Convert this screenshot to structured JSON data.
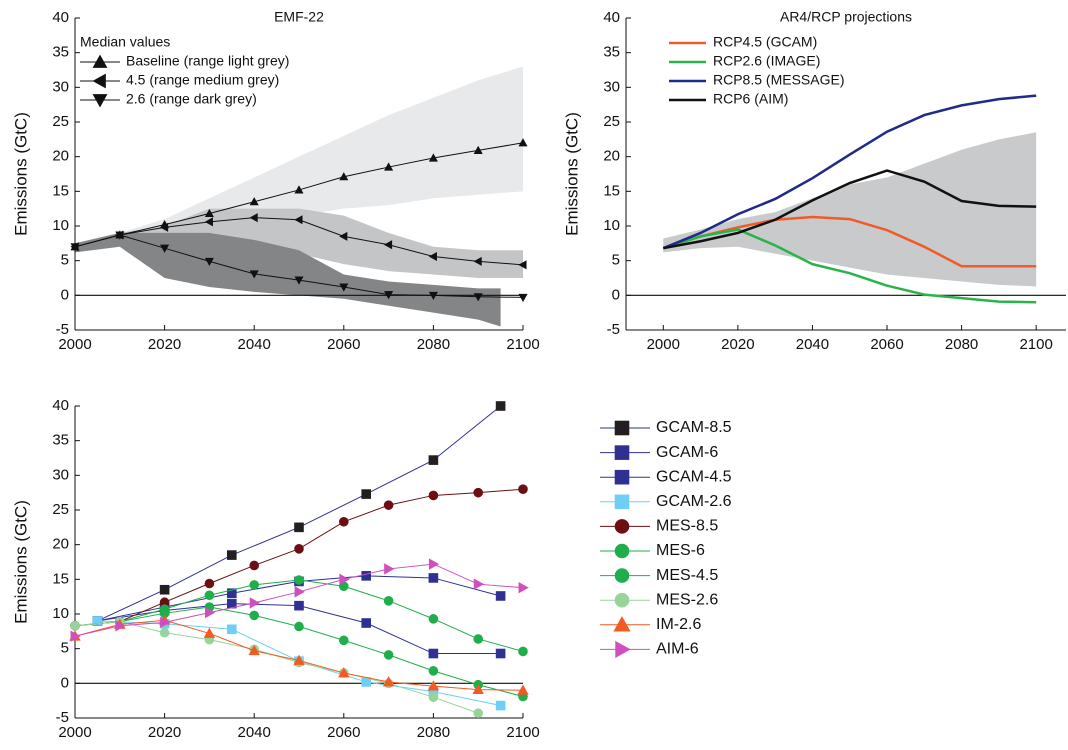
{
  "chart_data": [
    {
      "type": "line",
      "title": "EMF-22",
      "y_label": "Emissions (GtC)",
      "xlim": [
        2000,
        2100
      ],
      "xticks": [
        2000,
        2020,
        2040,
        2060,
        2080,
        2100
      ],
      "ylim": [
        -5,
        40
      ],
      "yticks": [
        -5,
        0,
        5,
        10,
        15,
        20,
        25,
        30,
        35,
        40
      ],
      "zero_line": true,
      "legend": "upper left",
      "legend_title": "Median values",
      "bands": [
        {
          "color": "#e8e9ea",
          "x": [
            2000,
            2010,
            2020,
            2030,
            2040,
            2050,
            2060,
            2070,
            2080,
            2090,
            2100
          ],
          "lower": [
            6.2,
            7.5,
            9,
            9.5,
            10.5,
            11.5,
            12.5,
            13,
            14,
            14.5,
            15
          ],
          "upper": [
            7.5,
            9,
            11,
            14,
            17,
            20,
            23,
            26,
            28.5,
            31,
            33
          ]
        },
        {
          "color": "#c4c5c7",
          "x": [
            2000,
            2010,
            2020,
            2030,
            2040,
            2050,
            2060,
            2070,
            2080,
            2090,
            2100
          ],
          "lower": [
            6.2,
            7.5,
            7.5,
            9,
            8,
            6,
            4.5,
            3.5,
            3,
            2.5,
            2.5
          ],
          "upper": [
            7.5,
            9,
            10,
            12.5,
            12.5,
            12.5,
            11.5,
            9,
            7,
            6.5,
            6.5
          ]
        },
        {
          "color": "#838587",
          "x": [
            2000,
            2010,
            2020,
            2030,
            2040,
            2050,
            2060,
            2070,
            2080,
            2090,
            2095
          ],
          "lower": [
            6.2,
            7,
            2.5,
            1.2,
            0.5,
            0,
            -0.5,
            -1.5,
            -2.5,
            -3.5,
            -4.5
          ],
          "upper": [
            7.5,
            9,
            9,
            9,
            8,
            6.5,
            3,
            2,
            1.5,
            1,
            1
          ]
        }
      ],
      "series": [
        {
          "name": "Baseline (range light grey)",
          "color": "#111111",
          "marker": "triangle-up",
          "x": [
            2000,
            2010,
            2020,
            2030,
            2040,
            2050,
            2060,
            2070,
            2080,
            2090,
            2100
          ],
          "values": [
            7,
            8.7,
            10.2,
            11.8,
            13.5,
            15.2,
            17.1,
            18.5,
            19.8,
            20.9,
            22
          ]
        },
        {
          "name": "4.5 (range medium grey)",
          "color": "#111111",
          "marker": "triangle-left",
          "x": [
            2000,
            2010,
            2020,
            2030,
            2040,
            2050,
            2060,
            2070,
            2080,
            2090,
            2100
          ],
          "values": [
            7,
            8.7,
            9.8,
            10.6,
            11.2,
            10.9,
            8.5,
            7.3,
            5.6,
            4.9,
            4.4
          ]
        },
        {
          "name": "2.6 (range dark grey)",
          "color": "#111111",
          "marker": "triangle-down",
          "x": [
            2000,
            2010,
            2020,
            2030,
            2040,
            2050,
            2060,
            2070,
            2080,
            2090,
            2100
          ],
          "values": [
            7,
            8.7,
            6.8,
            4.9,
            3.1,
            2.2,
            1.2,
            0.1,
            0,
            -0.2,
            -0.3
          ]
        }
      ]
    },
    {
      "type": "line",
      "title": "AR4/RCP projections",
      "y_label": "Emissions (GtC)",
      "xlim": [
        1990,
        2108
      ],
      "xticks": [
        2000,
        2020,
        2040,
        2060,
        2080,
        2100
      ],
      "ylim": [
        -5,
        40
      ],
      "yticks": [
        -5,
        0,
        5,
        10,
        15,
        20,
        25,
        30,
        35,
        40
      ],
      "zero_line": true,
      "legend": "upper left",
      "bands": [
        {
          "color": "#c9cacb",
          "x": [
            2000,
            2010,
            2020,
            2030,
            2040,
            2050,
            2060,
            2070,
            2080,
            2090,
            2100
          ],
          "lower": [
            6.2,
            6.8,
            7,
            6,
            5,
            4,
            3,
            2.5,
            2,
            1.5,
            1.3
          ],
          "upper": [
            8.2,
            9.5,
            11,
            12,
            14,
            16,
            17,
            19,
            21,
            22.5,
            23.5
          ]
        }
      ],
      "series": [
        {
          "name": "RCP4.5 (GCAM)",
          "color": "#f15a29",
          "marker": "none",
          "x": [
            2000,
            2010,
            2020,
            2030,
            2040,
            2050,
            2060,
            2070,
            2080,
            2090,
            2100
          ],
          "values": [
            6.8,
            8.5,
            9.8,
            10.9,
            11.3,
            11,
            9.4,
            7,
            4.2,
            4.2,
            4.2
          ]
        },
        {
          "name": "RCP2.6 (IMAGE)",
          "color": "#2bb34b",
          "marker": "none",
          "x": [
            2000,
            2010,
            2020,
            2030,
            2040,
            2050,
            2060,
            2070,
            2080,
            2090,
            2100
          ],
          "values": [
            6.8,
            8.5,
            9.5,
            7.2,
            4.5,
            3.2,
            1.4,
            0.1,
            -0.4,
            -0.9,
            -1
          ]
        },
        {
          "name": "RCP8.5 (MESSAGE)",
          "color": "#1f2a8a",
          "marker": "none",
          "x": [
            2000,
            2010,
            2020,
            2030,
            2040,
            2050,
            2060,
            2070,
            2080,
            2090,
            2100
          ],
          "values": [
            6.8,
            9,
            11.7,
            13.9,
            16.9,
            20.3,
            23.6,
            26,
            27.4,
            28.3,
            28.8
          ]
        },
        {
          "name": "RCP6 (AIM)",
          "color": "#111111",
          "marker": "none",
          "x": [
            2000,
            2010,
            2020,
            2030,
            2040,
            2050,
            2060,
            2070,
            2080,
            2090,
            2100
          ],
          "values": [
            6.8,
            7.8,
            9,
            10.9,
            13.7,
            16.2,
            18,
            16.4,
            13.6,
            12.9,
            12.8
          ]
        }
      ]
    },
    {
      "type": "line",
      "y_label": "Emissions (GtC)",
      "xlim": [
        2000,
        2100
      ],
      "xticks": [
        2000,
        2020,
        2040,
        2060,
        2080,
        2100
      ],
      "ylim": [
        -5,
        40
      ],
      "yticks": [
        -5,
        0,
        5,
        10,
        15,
        20,
        25,
        30,
        35,
        40
      ],
      "zero_line": true,
      "legend": "right",
      "series": [
        {
          "name": "GCAM-8.5",
          "color": "#2e3192",
          "marker_color": "#231f20",
          "marker": "square",
          "x": [
            2005,
            2020,
            2035,
            2050,
            2065,
            2080,
            2095
          ],
          "values": [
            9,
            13.5,
            18.5,
            22.5,
            27.3,
            32.2,
            40
          ]
        },
        {
          "name": "GCAM-6",
          "color": "#2e3192",
          "marker": "square",
          "x": [
            2005,
            2020,
            2035,
            2050,
            2065,
            2080,
            2095
          ],
          "values": [
            9,
            11,
            13,
            14.7,
            15.5,
            15.2,
            12.6
          ]
        },
        {
          "name": "GCAM-4.5",
          "color": "#2e3192",
          "marker": "square",
          "x": [
            2005,
            2020,
            2035,
            2050,
            2065,
            2080,
            2095
          ],
          "values": [
            9,
            10.5,
            11.5,
            11.2,
            8.7,
            4.3,
            4.3
          ]
        },
        {
          "name": "GCAM-2.6",
          "color": "#6dcff6",
          "marker": "square",
          "x": [
            2005,
            2020,
            2035,
            2050,
            2065,
            2080,
            2095
          ],
          "values": [
            9,
            8.6,
            7.8,
            3.2,
            0.2,
            -1.2,
            -3.2
          ]
        },
        {
          "name": "MES-8.5",
          "color": "#6d0e12",
          "marker": "circle",
          "x": [
            2000,
            2010,
            2020,
            2030,
            2040,
            2050,
            2060,
            2070,
            2080,
            2090,
            2100
          ],
          "values": [
            8.3,
            8.9,
            11.7,
            14.4,
            17,
            19.4,
            23.3,
            25.7,
            27.1,
            27.5,
            28
          ]
        },
        {
          "name": "MES-6",
          "color": "#1fae4b",
          "marker": "circle",
          "x": [
            2000,
            2010,
            2020,
            2030,
            2040,
            2050,
            2060,
            2070,
            2080,
            2090,
            2100
          ],
          "values": [
            8.3,
            8.9,
            10.7,
            12.7,
            14.2,
            14.9,
            14,
            11.9,
            9.3,
            6.4,
            4.6
          ]
        },
        {
          "name": "MES-4.5",
          "color": "#1fae4b",
          "marker": "circle",
          "x": [
            2000,
            2010,
            2020,
            2030,
            2040,
            2050,
            2060,
            2070,
            2080,
            2090,
            2100
          ],
          "values": [
            8.3,
            8.9,
            10.1,
            11,
            9.8,
            8.2,
            6.2,
            4.1,
            1.8,
            -0.2,
            -1.9
          ]
        },
        {
          "name": "MES-2.6",
          "color": "#98d49a",
          "marker": "circle",
          "x": [
            2000,
            2010,
            2020,
            2030,
            2040,
            2050,
            2060,
            2070,
            2080,
            2090
          ],
          "values": [
            8.3,
            8.9,
            7.3,
            6.3,
            4.9,
            3,
            1.5,
            0,
            -2,
            -4.3
          ]
        },
        {
          "name": "IM-2.6",
          "color": "#f15a22",
          "marker": "triangle-up",
          "x": [
            2000,
            2010,
            2020,
            2030,
            2040,
            2050,
            2060,
            2070,
            2080,
            2090,
            2100
          ],
          "values": [
            6.8,
            8.5,
            9.1,
            7.2,
            4.7,
            3.3,
            1.5,
            0.2,
            -0.4,
            -0.9,
            -1
          ]
        },
        {
          "name": "AIM-6",
          "color": "#d04fbe",
          "marker": "triangle-right",
          "x": [
            2000,
            2010,
            2020,
            2030,
            2040,
            2050,
            2060,
            2070,
            2080,
            2090,
            2100
          ],
          "values": [
            6.8,
            8.3,
            8.8,
            10.2,
            11.6,
            13.2,
            15,
            16.5,
            17.2,
            14.3,
            13.8
          ]
        }
      ]
    }
  ]
}
